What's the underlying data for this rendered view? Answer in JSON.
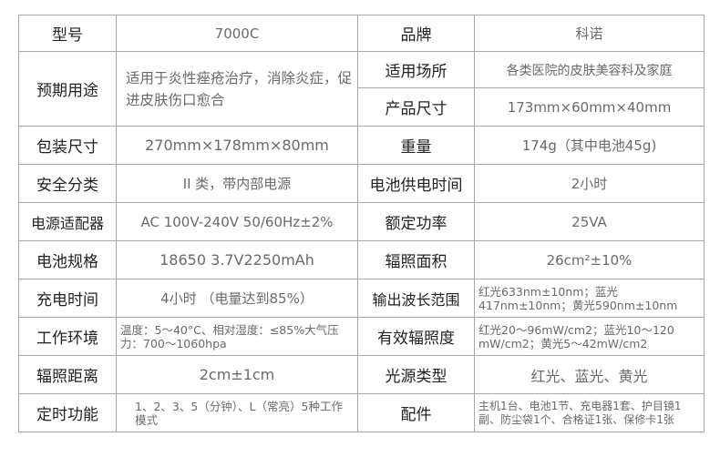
{
  "rows": [
    {
      "k1": "型号",
      "v1": "7000C",
      "k2": "品牌",
      "v2": "科诺"
    },
    {
      "k1": "预期用途",
      "v1": "适用于炎性痤疮治疗，消除炎症，促进皮肤伤口愈合",
      "k2": "适用场所",
      "v2": "各类医院的皮肤美容科及家庭"
    },
    {
      "k2": "产品尺寸",
      "v2": "173mm×60mm×40mm"
    },
    {
      "k1": "包装尺寸",
      "v1": "270mm×178mm×80mm",
      "k2": "重量",
      "v2": "174g（其中电池45g)"
    },
    {
      "k1": "安全分类",
      "v1": "II 类，带内部电源",
      "k2": "电池供电时间",
      "v2": "2小时"
    },
    {
      "k1": "电源适配器",
      "v1": "AC 100V-240V  50/60Hz±2%",
      "k2": "额定功率",
      "v2": "25VA"
    },
    {
      "k1": "电池规格",
      "v1": "18650 3.7V2250mAh",
      "k2": "辐照面积",
      "v2": "26cm²±10%"
    },
    {
      "k1": "充电时间",
      "v1": "4小时 （电量达到85%）",
      "k2": "输出波长范围",
      "v2": "红光633nm±10nm；蓝光417nm±10nm；黄光590nm±10nm"
    },
    {
      "k1": "工作环境",
      "v1": "温度：5～40°C、相对湿度：≤85%大气压力：700～1060hpa",
      "k2": "有效辐照度",
      "v2": "红光20～96mW/cm2；蓝光10～120 mW/cm2；黄光5～42mW/cm2"
    },
    {
      "k1": "辐照距离",
      "v1": "2cm±1cm",
      "k2": "光源类型",
      "v2": "红光、蓝光、黄光"
    },
    {
      "k1": "定时功能",
      "v1": "1、2、3、5（分钟）、L（常亮）5种工作模式",
      "k2": "配件",
      "v2": "主机1台、电池1节、充电器1套、护目镜1副、防尘袋1个、合格证1张、保修卡1张"
    }
  ]
}
